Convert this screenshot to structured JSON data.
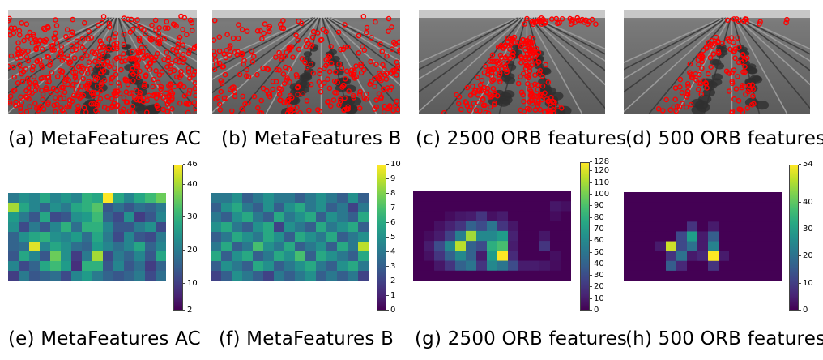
{
  "captions": {
    "a": "(a) MetaFeatures AC",
    "b": "(b) MetaFeatures B",
    "c": "(c) 2500 ORB features",
    "d": "(d) 500 ORB features",
    "e": "(e) MetaFeatures AC",
    "f": "(f) MetaFeatures B",
    "g": "(g) 2500 ORB features",
    "h": "(h) 500 ORB features"
  },
  "colors": {
    "keypoint": "#ff0000",
    "colormap": "viridis"
  },
  "chart_data": [
    {
      "type": "heatmap",
      "panel": "e",
      "colorbar_range": [
        2,
        46
      ],
      "colorbar_ticks": [
        2,
        10,
        20,
        30,
        40,
        46
      ],
      "rows": 9,
      "cols": 15,
      "values": [
        [
          20,
          24,
          22,
          28,
          22,
          25,
          22,
          30,
          28,
          46,
          28,
          22,
          28,
          32,
          36
        ],
        [
          40,
          28,
          22,
          16,
          24,
          20,
          28,
          30,
          34,
          14,
          18,
          14,
          18,
          16,
          20
        ],
        [
          26,
          20,
          14,
          28,
          12,
          14,
          24,
          26,
          32,
          16,
          12,
          24,
          10,
          14,
          22
        ],
        [
          24,
          12,
          20,
          14,
          22,
          30,
          18,
          30,
          30,
          22,
          14,
          14,
          20,
          24,
          12
        ],
        [
          16,
          24,
          28,
          30,
          24,
          22,
          26,
          18,
          28,
          20,
          12,
          22,
          14,
          12,
          20
        ],
        [
          16,
          18,
          44,
          22,
          28,
          24,
          18,
          16,
          26,
          22,
          18,
          22,
          28,
          16,
          22
        ],
        [
          14,
          28,
          22,
          14,
          36,
          24,
          10,
          20,
          40,
          12,
          20,
          16,
          22,
          14,
          28
        ],
        [
          22,
          12,
          16,
          28,
          32,
          26,
          8,
          30,
          30,
          14,
          22,
          14,
          18,
          10,
          16
        ],
        [
          10,
          20,
          14,
          16,
          18,
          12,
          22,
          26,
          20,
          16,
          14,
          16,
          20,
          12,
          18
        ]
      ]
    },
    {
      "type": "heatmap",
      "panel": "f",
      "colorbar_range": [
        0,
        10
      ],
      "colorbar_ticks": [
        0,
        1,
        2,
        3,
        4,
        5,
        6,
        7,
        8,
        9,
        10
      ],
      "rows": 9,
      "cols": 15,
      "values": [
        [
          4,
          4,
          5,
          3,
          4,
          5,
          4,
          4,
          3,
          4,
          5,
          4,
          3,
          5,
          3
        ],
        [
          3,
          5,
          6,
          4,
          3,
          5,
          3,
          5,
          6,
          4,
          5,
          3,
          4,
          2,
          4
        ],
        [
          4,
          3,
          5,
          6,
          4,
          3,
          6,
          4,
          5,
          6,
          3,
          5,
          4,
          3,
          6
        ],
        [
          5,
          6,
          4,
          3,
          5,
          6,
          2,
          5,
          4,
          3,
          6,
          4,
          5,
          6,
          3
        ],
        [
          3,
          4,
          6,
          5,
          4,
          6,
          5,
          3,
          6,
          5,
          4,
          6,
          3,
          4,
          5
        ],
        [
          4,
          6,
          3,
          4,
          7,
          5,
          4,
          6,
          3,
          4,
          5,
          3,
          6,
          4,
          9
        ],
        [
          6,
          3,
          5,
          6,
          3,
          4,
          6,
          5,
          7,
          3,
          6,
          5,
          4,
          3,
          6
        ],
        [
          3,
          5,
          4,
          3,
          6,
          5,
          3,
          4,
          5,
          6,
          4,
          3,
          5,
          6,
          4
        ],
        [
          2,
          3,
          5,
          4,
          3,
          2,
          4,
          3,
          4,
          5,
          3,
          4,
          3,
          4,
          2
        ]
      ]
    },
    {
      "type": "heatmap",
      "panel": "g",
      "colorbar_range": [
        0,
        128
      ],
      "colorbar_ticks": [
        0,
        10,
        20,
        30,
        40,
        50,
        60,
        70,
        80,
        90,
        100,
        110,
        120,
        128
      ],
      "rows": 9,
      "cols": 15,
      "values": [
        [
          0,
          0,
          0,
          0,
          0,
          0,
          0,
          0,
          0,
          0,
          0,
          0,
          0,
          0,
          0
        ],
        [
          0,
          0,
          0,
          0,
          0,
          0,
          0,
          0,
          0,
          0,
          0,
          0,
          0,
          8,
          5
        ],
        [
          0,
          0,
          0,
          4,
          8,
          10,
          20,
          6,
          10,
          0,
          0,
          0,
          0,
          4,
          0
        ],
        [
          0,
          0,
          6,
          12,
          20,
          40,
          30,
          50,
          20,
          8,
          0,
          0,
          0,
          0,
          0
        ],
        [
          0,
          4,
          10,
          25,
          55,
          110,
          60,
          60,
          70,
          12,
          0,
          0,
          8,
          0,
          0
        ],
        [
          0,
          10,
          30,
          60,
          115,
          40,
          30,
          80,
          90,
          10,
          0,
          0,
          20,
          0,
          0
        ],
        [
          0,
          6,
          20,
          40,
          60,
          40,
          10,
          70,
          128,
          15,
          0,
          0,
          0,
          5,
          0
        ],
        [
          0,
          0,
          8,
          20,
          40,
          50,
          20,
          60,
          50,
          30,
          10,
          10,
          8,
          4,
          0
        ],
        [
          0,
          0,
          0,
          0,
          0,
          0,
          0,
          0,
          0,
          0,
          0,
          0,
          0,
          0,
          0
        ]
      ]
    },
    {
      "type": "heatmap",
      "panel": "h",
      "colorbar_range": [
        0,
        54
      ],
      "colorbar_ticks": [
        0,
        10,
        20,
        30,
        40,
        54
      ],
      "rows": 9,
      "cols": 15,
      "values": [
        [
          0,
          0,
          0,
          0,
          0,
          0,
          0,
          0,
          0,
          0,
          0,
          0,
          0,
          0,
          0
        ],
        [
          0,
          0,
          0,
          0,
          0,
          0,
          0,
          0,
          0,
          0,
          0,
          0,
          0,
          0,
          0
        ],
        [
          0,
          0,
          0,
          0,
          0,
          0,
          0,
          0,
          0,
          0,
          0,
          0,
          0,
          0,
          0
        ],
        [
          0,
          0,
          0,
          0,
          0,
          0,
          8,
          0,
          4,
          0,
          0,
          0,
          0,
          0,
          0
        ],
        [
          0,
          0,
          0,
          0,
          0,
          12,
          30,
          4,
          16,
          0,
          0,
          0,
          0,
          0,
          0
        ],
        [
          0,
          0,
          0,
          4,
          50,
          12,
          20,
          4,
          24,
          0,
          0,
          0,
          0,
          0,
          0
        ],
        [
          0,
          0,
          0,
          0,
          8,
          20,
          4,
          6,
          54,
          4,
          0,
          0,
          0,
          0,
          0
        ],
        [
          0,
          0,
          0,
          0,
          16,
          6,
          0,
          0,
          8,
          0,
          0,
          0,
          0,
          0,
          0
        ],
        [
          0,
          0,
          0,
          0,
          0,
          0,
          0,
          0,
          0,
          0,
          0,
          0,
          0,
          0,
          0
        ]
      ]
    }
  ]
}
